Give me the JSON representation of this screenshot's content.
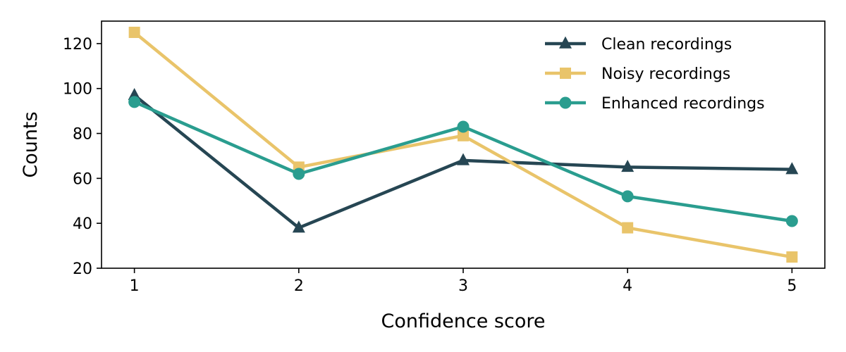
{
  "chart_data": {
    "type": "line",
    "title": "",
    "xlabel": "Confidence score",
    "ylabel": "Counts",
    "x": [
      1,
      2,
      3,
      4,
      5
    ],
    "xlim": [
      0.8,
      5.2
    ],
    "ylim": [
      20,
      130
    ],
    "xticks": [
      "1",
      "2",
      "3",
      "4",
      "5"
    ],
    "yticks": [
      "20",
      "40",
      "60",
      "80",
      "100",
      "120"
    ],
    "grid": false,
    "legend_position": "top-right",
    "series": [
      {
        "name": "Clean recordings",
        "values": [
          97,
          38,
          68,
          65,
          64
        ],
        "color": "#264653",
        "marker": "triangle"
      },
      {
        "name": "Noisy recordings",
        "values": [
          125,
          65,
          79,
          38,
          25
        ],
        "color": "#e9c46a",
        "marker": "square"
      },
      {
        "name": "Enhanced recordings",
        "values": [
          94,
          62,
          83,
          52,
          41
        ],
        "color": "#2a9d8f",
        "marker": "circle"
      }
    ]
  }
}
